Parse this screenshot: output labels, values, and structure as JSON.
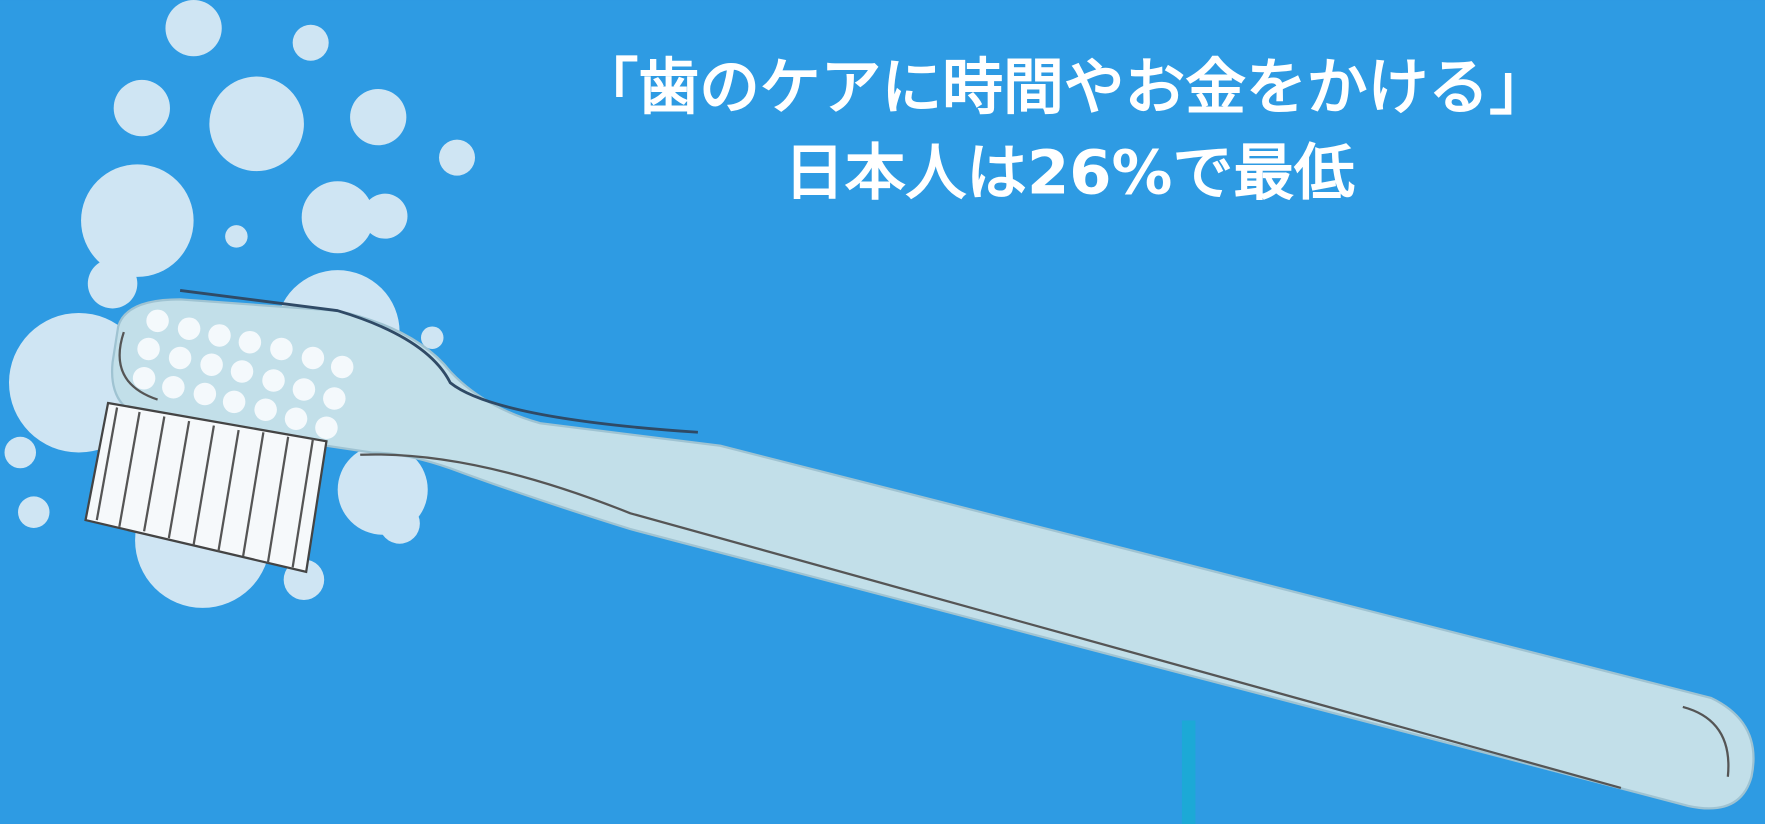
{
  "title": {
    "line1": "「歯のケアに時間やお金をかける」",
    "line2": "日本人は26%で最低"
  }
}
